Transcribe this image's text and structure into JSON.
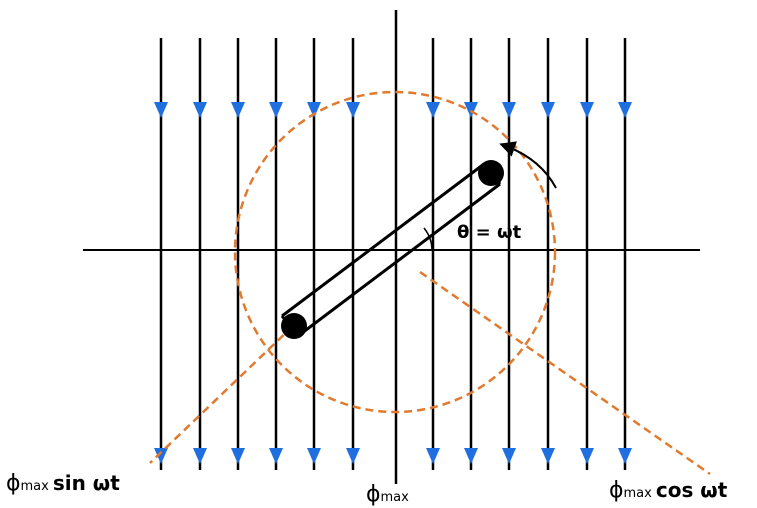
{
  "diagram": {
    "colors": {
      "field_line": "#000000",
      "arrow_head": "#1f6fe0",
      "dashed_path": "#e07a2f",
      "coil": "#000000",
      "axes": "#000000",
      "background": "#ffffff"
    },
    "labels": {
      "angle": "θ = ωt",
      "sin_phi": "ϕ",
      "sin_sub": "max",
      "sin_rest": "sin ωt",
      "max_phi": "ϕ",
      "max_sub": "max",
      "cos_phi": "ϕ",
      "cos_sub": "max",
      "cos_rest": "cos ωt"
    },
    "icons": {
      "rotation": "curved-arrow-icon",
      "arrowhead": "down-arrow-icon"
    }
  }
}
